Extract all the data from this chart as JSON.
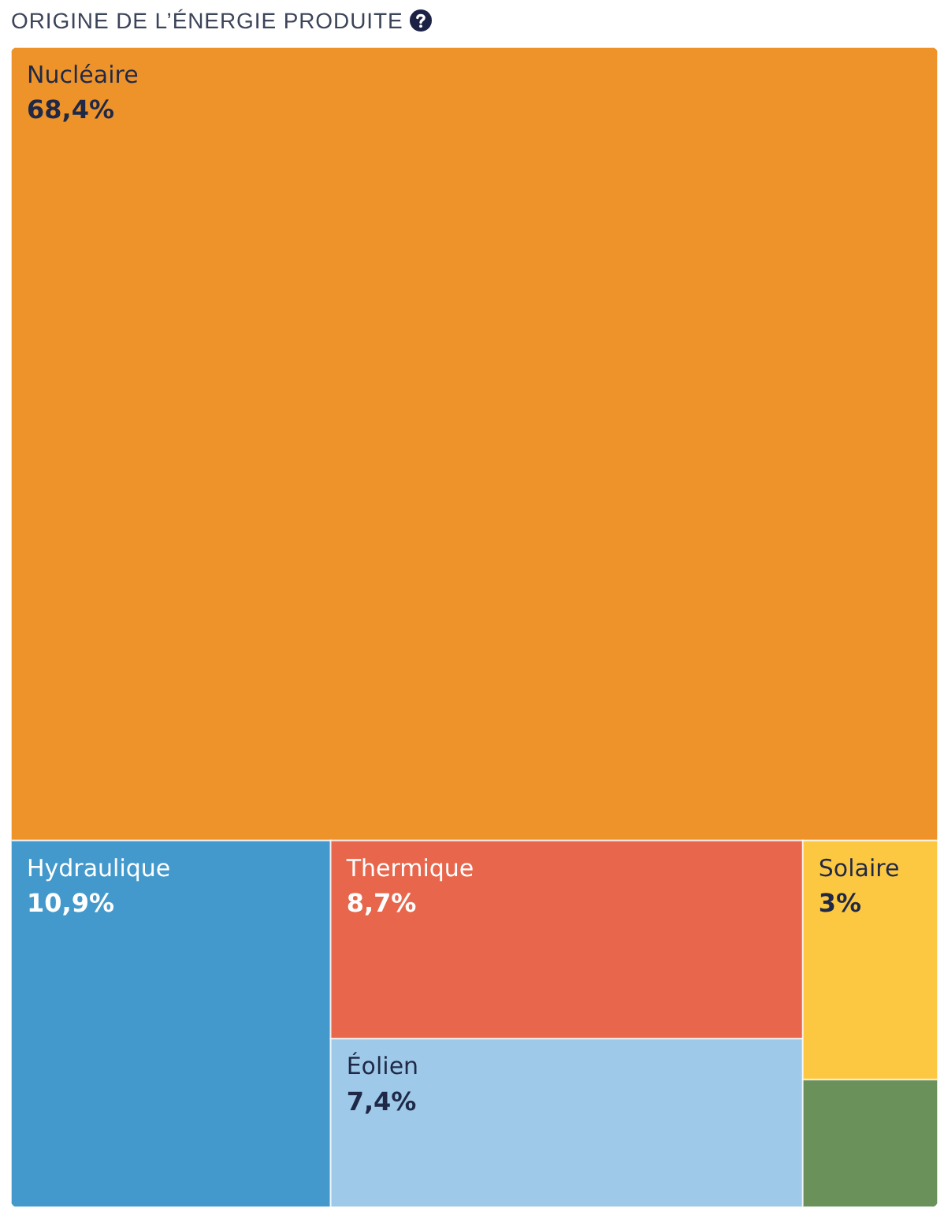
{
  "chart_data": {
    "type": "other",
    "title": "ORIGINE DE L’ÉNERGIE PRODUITE",
    "categories": [
      "Nucléaire",
      "Hydraulique",
      "Thermique",
      "Éolien",
      "Solaire",
      null
    ],
    "values": [
      68.4,
      10.9,
      8.7,
      7.4,
      3,
      null
    ],
    "value_labels": [
      "68,4%",
      "10,9%",
      "8,7%",
      "7,4%",
      "3%",
      null
    ],
    "colors": [
      "#ee932a",
      "#4499cc",
      "#e8664b",
      "#9fc9e8",
      "#fdc841",
      "#6a915a"
    ]
  }
}
